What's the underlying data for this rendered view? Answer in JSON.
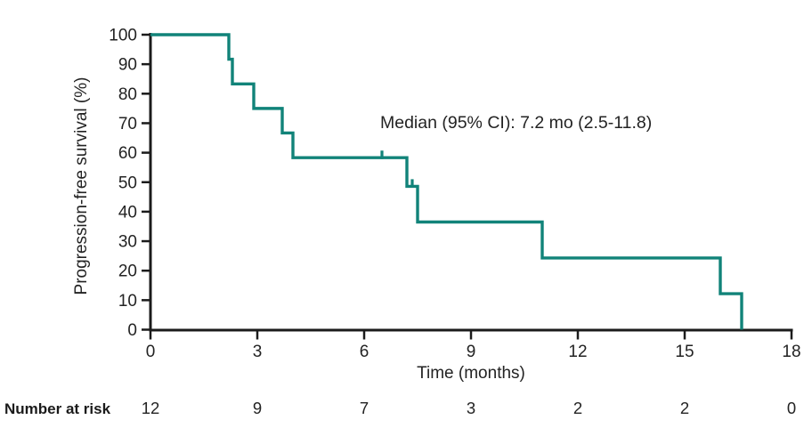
{
  "chart_data": {
    "type": "line",
    "subtype": "kaplan-meier-step-curve",
    "title": "",
    "xlabel": "Time (months)",
    "ylabel": "Progression-free survival (%)",
    "annotation": "Median (95% CI): 7.2 mo (2.5-11.8)",
    "xlim": [
      0,
      18
    ],
    "ylim": [
      0,
      100
    ],
    "x_ticks": [
      0,
      3,
      6,
      9,
      12,
      15,
      18
    ],
    "y_ticks": [
      0,
      10,
      20,
      30,
      40,
      50,
      60,
      70,
      80,
      90,
      100
    ],
    "grid": false,
    "legend": false,
    "series": [
      {
        "name": "Progression-free survival",
        "color": "#118379",
        "step_points": [
          [
            0,
            100
          ],
          [
            2.2,
            100
          ],
          [
            2.2,
            91.7
          ],
          [
            2.3,
            91.7
          ],
          [
            2.3,
            83.3
          ],
          [
            2.9,
            83.3
          ],
          [
            2.9,
            75
          ],
          [
            3.7,
            75
          ],
          [
            3.7,
            66.7
          ],
          [
            4.0,
            66.7
          ],
          [
            4.0,
            58.3
          ],
          [
            7.2,
            58.3
          ],
          [
            7.2,
            48.6
          ],
          [
            7.5,
            48.6
          ],
          [
            7.5,
            36.5
          ],
          [
            11.0,
            36.5
          ],
          [
            11.0,
            24.3
          ],
          [
            16.0,
            24.3
          ],
          [
            16.0,
            12.2
          ],
          [
            16.6,
            12.2
          ],
          [
            16.6,
            0
          ]
        ],
        "censor_marks": [
          [
            6.5,
            58.3
          ],
          [
            7.35,
            48.6
          ]
        ]
      }
    ]
  },
  "number_at_risk": {
    "label": "Number at risk",
    "times": [
      0,
      3,
      6,
      9,
      12,
      15,
      18
    ],
    "counts": [
      12,
      9,
      7,
      3,
      2,
      2,
      0
    ]
  },
  "colors": {
    "curve": "#118379",
    "axis": "#1b1b1b",
    "text": "#232323",
    "background": "#ffffff"
  }
}
